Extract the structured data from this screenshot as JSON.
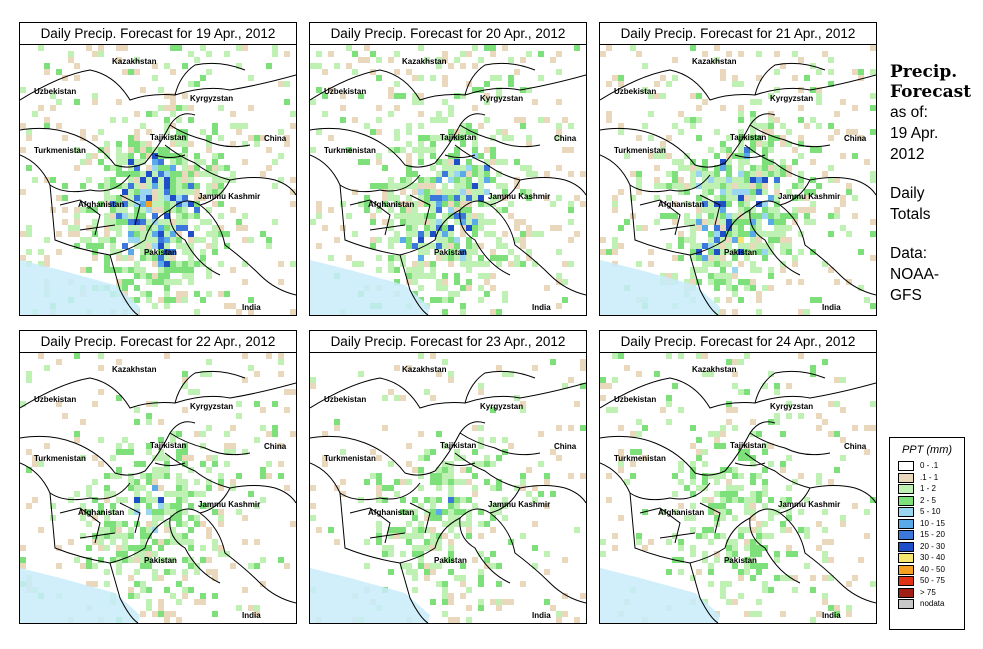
{
  "panels": [
    {
      "title": "Daily Precip. Forecast for  19 Apr., 2012",
      "seed": 11,
      "wet": 1.0
    },
    {
      "title": "Daily Precip. Forecast for  20 Apr., 2012",
      "seed": 23,
      "wet": 0.9
    },
    {
      "title": "Daily Precip. Forecast for  21 Apr., 2012",
      "seed": 37,
      "wet": 0.95
    },
    {
      "title": "Daily Precip. Forecast for  22 Apr., 2012",
      "seed": 41,
      "wet": 0.65
    },
    {
      "title": "Daily Precip. Forecast for  23 Apr., 2012",
      "seed": 53,
      "wet": 0.5
    },
    {
      "title": "Daily Precip. Forecast for  24 Apr., 2012",
      "seed": 67,
      "wet": 0.55
    }
  ],
  "map_labels": {
    "kazakhstan": "Kazakhstan",
    "uzbekistan": "Uzbekistan",
    "kyrgyzstan": "Kyrgyzstan",
    "tajikistan": "Tajikistan",
    "turkmenistan": "Turkmenistan",
    "china": "China",
    "afghanistan": "Afghanistan",
    "jammu": "Jammu Kashmir",
    "pakistan": "Pakistan",
    "india": "India"
  },
  "side_text": {
    "heading_line1": "Precip.",
    "heading_line2": "Forecast",
    "asof_line1": "as of:",
    "asof_line2": "19 Apr.",
    "asof_line3": "2012",
    "daily_line1": "Daily",
    "daily_line2": "Totals",
    "data_line1": "Data:",
    "data_line2": "NOAA-",
    "data_line3": "GFS"
  },
  "legend": {
    "title": "PPT (mm)",
    "items": [
      {
        "label": "0 - .1",
        "color": "#ffffff"
      },
      {
        "label": ".1 - 1",
        "color": "#ead8bc"
      },
      {
        "label": "1 - 2",
        "color": "#bff0b4"
      },
      {
        "label": "2 - 5",
        "color": "#7ee07a"
      },
      {
        "label": "5 - 10",
        "color": "#9ad6f0"
      },
      {
        "label": "10 - 15",
        "color": "#5aaaea"
      },
      {
        "label": "15 - 20",
        "color": "#3c78dc"
      },
      {
        "label": "20 - 30",
        "color": "#1f4fc8"
      },
      {
        "label": "30 - 40",
        "color": "#f5e66e"
      },
      {
        "label": "40 - 50",
        "color": "#f5a020"
      },
      {
        "label": "50 - 75",
        "color": "#e03214"
      },
      {
        "label": "> 75",
        "color": "#a01e14"
      },
      {
        "label": "nodata",
        "color": "#c8c8c8"
      }
    ]
  }
}
